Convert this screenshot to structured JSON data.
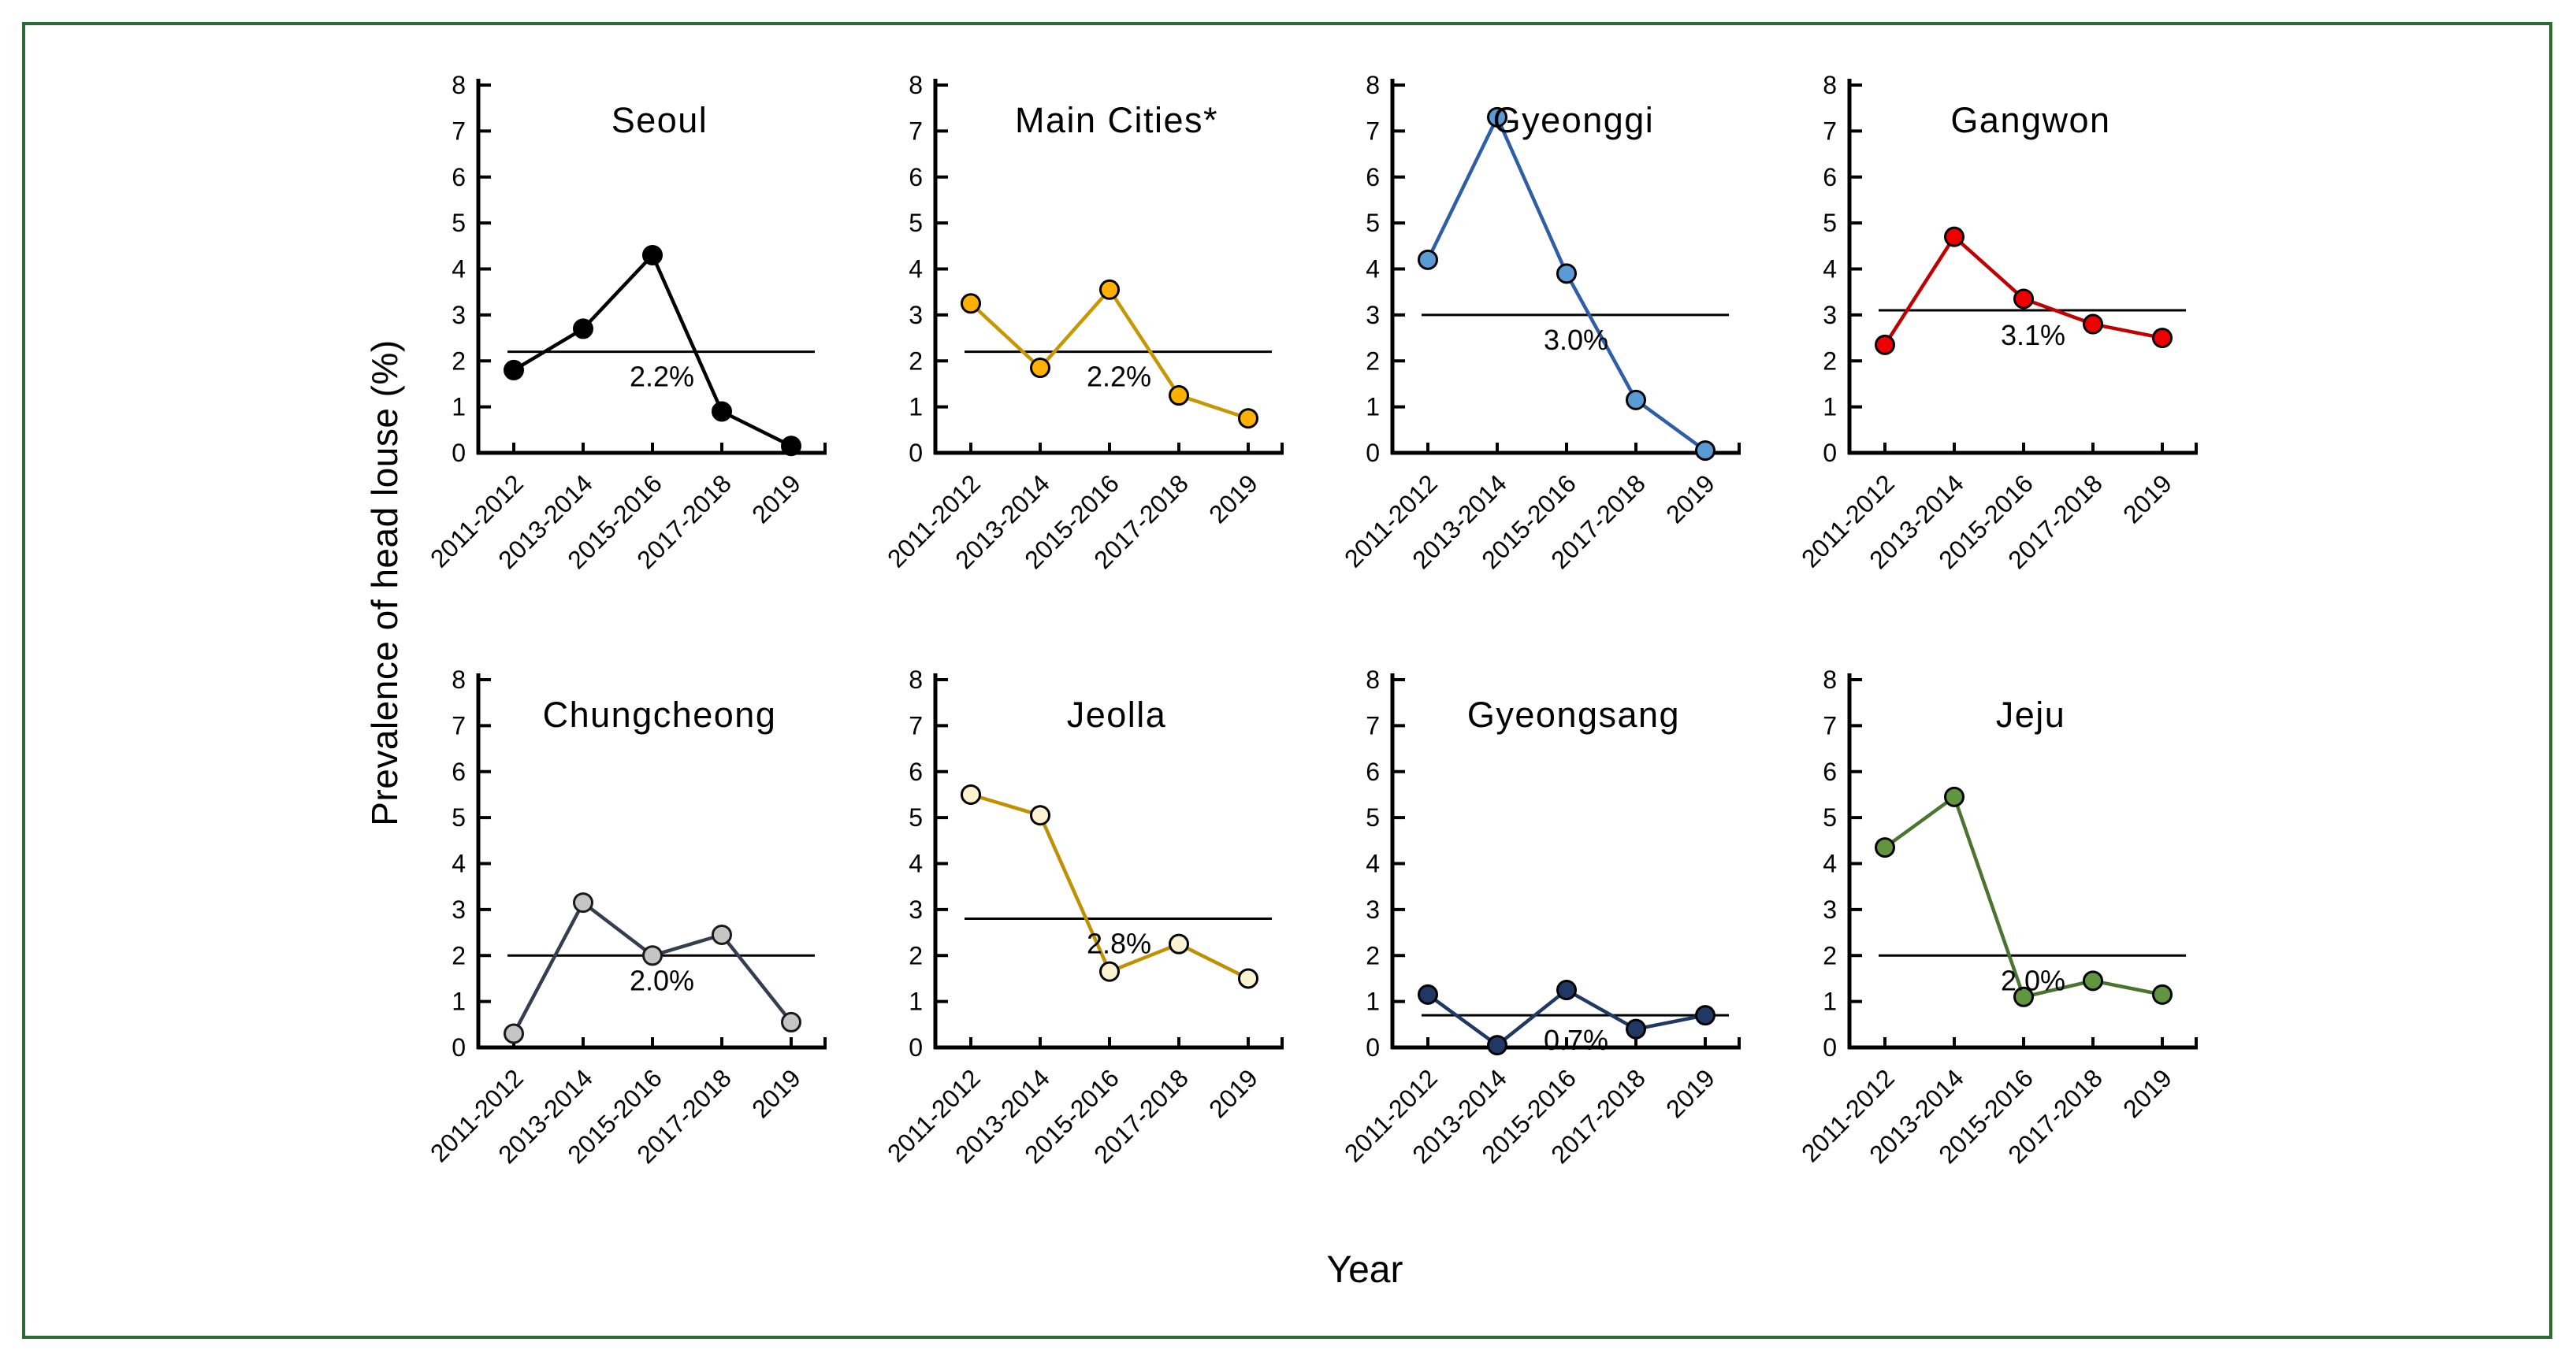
{
  "figure": {
    "y_axis_label": "Prevalence of head louse (%)",
    "x_axis_label": "Year",
    "border_color": "#2E6B34"
  },
  "chart_data": [
    {
      "type": "line",
      "title": "Seoul",
      "categories": [
        "2011-2012",
        "2013-2014",
        "2015-2016",
        "2017-2018",
        "2019"
      ],
      "values": [
        1.8,
        2.7,
        4.3,
        0.9,
        0.15
      ],
      "mean_line": {
        "value": 2.2,
        "label": "2.2%"
      },
      "ylim": [
        0,
        8
      ],
      "ytick_step": 1,
      "line_color": "#000000",
      "marker_color": "#000000",
      "marker_outline": "#000000"
    },
    {
      "type": "line",
      "title": "Main Cities*",
      "categories": [
        "2011-2012",
        "2013-2014",
        "2015-2016",
        "2017-2018",
        "2019"
      ],
      "values": [
        3.25,
        1.85,
        3.55,
        1.25,
        0.75
      ],
      "mean_line": {
        "value": 2.2,
        "label": "2.2%"
      },
      "ylim": [
        0,
        8
      ],
      "ytick_step": 1,
      "line_color": "#C89600",
      "marker_color": "#FFB000",
      "marker_outline": "#000000"
    },
    {
      "type": "line",
      "title": "Gyeonggi",
      "categories": [
        "2011-2012",
        "2013-2014",
        "2015-2016",
        "2017-2018",
        "2019"
      ],
      "values": [
        4.2,
        7.3,
        3.9,
        1.15,
        0.05
      ],
      "mean_line": {
        "value": 3.0,
        "label": "3.0%"
      },
      "ylim": [
        0,
        8
      ],
      "ytick_step": 1,
      "line_color": "#2E5EA8",
      "marker_color": "#5B9BD5",
      "marker_outline": "#000000"
    },
    {
      "type": "line",
      "title": "Gangwon",
      "categories": [
        "2011-2012",
        "2013-2014",
        "2015-2016",
        "2017-2018",
        "2019"
      ],
      "values": [
        2.35,
        4.7,
        3.35,
        2.8,
        2.5
      ],
      "mean_line": {
        "value": 3.1,
        "label": "3.1%"
      },
      "ylim": [
        0,
        8
      ],
      "ytick_step": 1,
      "line_color": "#C00000",
      "marker_color": "#EE0000",
      "marker_outline": "#000000"
    },
    {
      "type": "line",
      "title": "Chungcheong",
      "categories": [
        "2011-2012",
        "2013-2014",
        "2015-2016",
        "2017-2018",
        "2019"
      ],
      "values": [
        0.3,
        3.15,
        2.0,
        2.45,
        0.55
      ],
      "mean_line": {
        "value": 2.0,
        "label": "2.0%"
      },
      "ylim": [
        0,
        8
      ],
      "ytick_step": 1,
      "line_color": "#333F50",
      "marker_color": "#C5C5C5",
      "marker_outline": "#1A1A1A"
    },
    {
      "type": "line",
      "title": "Jeolla",
      "categories": [
        "2011-2012",
        "2013-2014",
        "2015-2016",
        "2017-2018",
        "2019"
      ],
      "values": [
        5.5,
        5.05,
        1.65,
        2.25,
        1.5
      ],
      "mean_line": {
        "value": 2.8,
        "label": "2.8%"
      },
      "ylim": [
        0,
        8
      ],
      "ytick_step": 1,
      "line_color": "#BF9000",
      "marker_color": "#FDF3D0",
      "marker_outline": "#000000"
    },
    {
      "type": "line",
      "title": "Gyeongsang",
      "categories": [
        "2011-2012",
        "2013-2014",
        "2015-2016",
        "2017-2018",
        "2019"
      ],
      "values": [
        1.15,
        0.05,
        1.25,
        0.4,
        0.7
      ],
      "mean_line": {
        "value": 0.7,
        "label": "0.7%"
      },
      "ylim": [
        0,
        8
      ],
      "ytick_step": 1,
      "line_color": "#1F3864",
      "marker_color": "#1F3864",
      "marker_outline": "#000000"
    },
    {
      "type": "line",
      "title": "Jeju",
      "categories": [
        "2011-2012",
        "2013-2014",
        "2015-2016",
        "2017-2018",
        "2019"
      ],
      "values": [
        4.35,
        5.45,
        1.1,
        1.45,
        1.15
      ],
      "mean_line": {
        "value": 2.0,
        "label": "2.0%"
      },
      "ylim": [
        0,
        8
      ],
      "ytick_step": 1,
      "line_color": "#4A7530",
      "marker_color": "#61953F",
      "marker_outline": "#000000"
    }
  ]
}
